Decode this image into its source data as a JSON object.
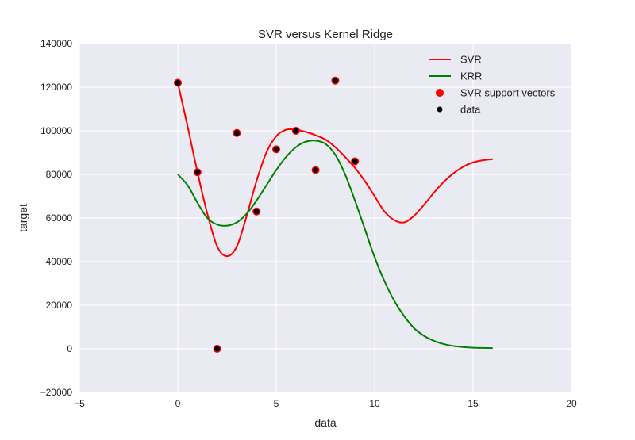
{
  "chart_data": {
    "type": "line",
    "title": "SVR versus Kernel Ridge",
    "xlabel": "data",
    "ylabel": "target",
    "xlim": [
      -5,
      20
    ],
    "ylim": [
      -20000,
      140000
    ],
    "xticks": [
      -5,
      0,
      5,
      10,
      15,
      20
    ],
    "yticks": [
      -20000,
      0,
      20000,
      40000,
      60000,
      80000,
      100000,
      120000,
      140000
    ],
    "grid": true,
    "legend_position": "top-right",
    "series": [
      {
        "name": "SVR",
        "kind": "line",
        "color": "#ff0000",
        "x": [
          0,
          0.5,
          1,
          1.5,
          2,
          2.5,
          3,
          3.5,
          4,
          4.5,
          5,
          5.5,
          6,
          6.5,
          7,
          7.5,
          8,
          8.5,
          9,
          9.5,
          10,
          10.5,
          11,
          11.5,
          12,
          12.5,
          13,
          13.5,
          14,
          14.5,
          15,
          15.5,
          16
        ],
        "y": [
          122000,
          102000,
          81000,
          62000,
          47000,
          42500,
          47000,
          61000,
          77000,
          90000,
          97500,
          100500,
          100500,
          99500,
          98000,
          96000,
          92500,
          88000,
          83000,
          77000,
          70000,
          63000,
          59000,
          58000,
          61000,
          66000,
          71500,
          76500,
          80500,
          83500,
          85500,
          86500,
          87000
        ]
      },
      {
        "name": "KRR",
        "kind": "line",
        "color": "#008000",
        "x": [
          0,
          0.5,
          1,
          1.5,
          2,
          2.5,
          3,
          3.5,
          4,
          4.5,
          5,
          5.5,
          6,
          6.5,
          7,
          7.5,
          8,
          8.5,
          9,
          9.5,
          10,
          10.5,
          11,
          11.5,
          12,
          12.5,
          13,
          13.5,
          14,
          14.5,
          15,
          15.5,
          16
        ],
        "y": [
          80000,
          75000,
          67000,
          60000,
          57000,
          56500,
          58000,
          62000,
          68000,
          75000,
          82000,
          88000,
          92500,
          95000,
          95500,
          94000,
          89000,
          80000,
          68000,
          55000,
          42000,
          31000,
          22000,
          15000,
          9500,
          6000,
          3700,
          2200,
          1300,
          800,
          500,
          400,
          300
        ]
      },
      {
        "name": "SVR support vectors",
        "kind": "scatter",
        "color": "#ff0000",
        "x": [
          0,
          1,
          2,
          3,
          4,
          5,
          6,
          7,
          8,
          9
        ],
        "y": [
          122000,
          81000,
          0,
          99000,
          63000,
          91500,
          100000,
          82000,
          123000,
          86000
        ]
      },
      {
        "name": "data",
        "kind": "scatter",
        "color": "#000000",
        "x": [
          0,
          1,
          2,
          3,
          4,
          5,
          6,
          7,
          8,
          9
        ],
        "y": [
          122000,
          81000,
          0,
          99000,
          63000,
          91500,
          100000,
          82000,
          123000,
          86000
        ]
      }
    ],
    "colors": {
      "plot_background": "#eaeaf2",
      "grid": "#ffffff"
    }
  }
}
